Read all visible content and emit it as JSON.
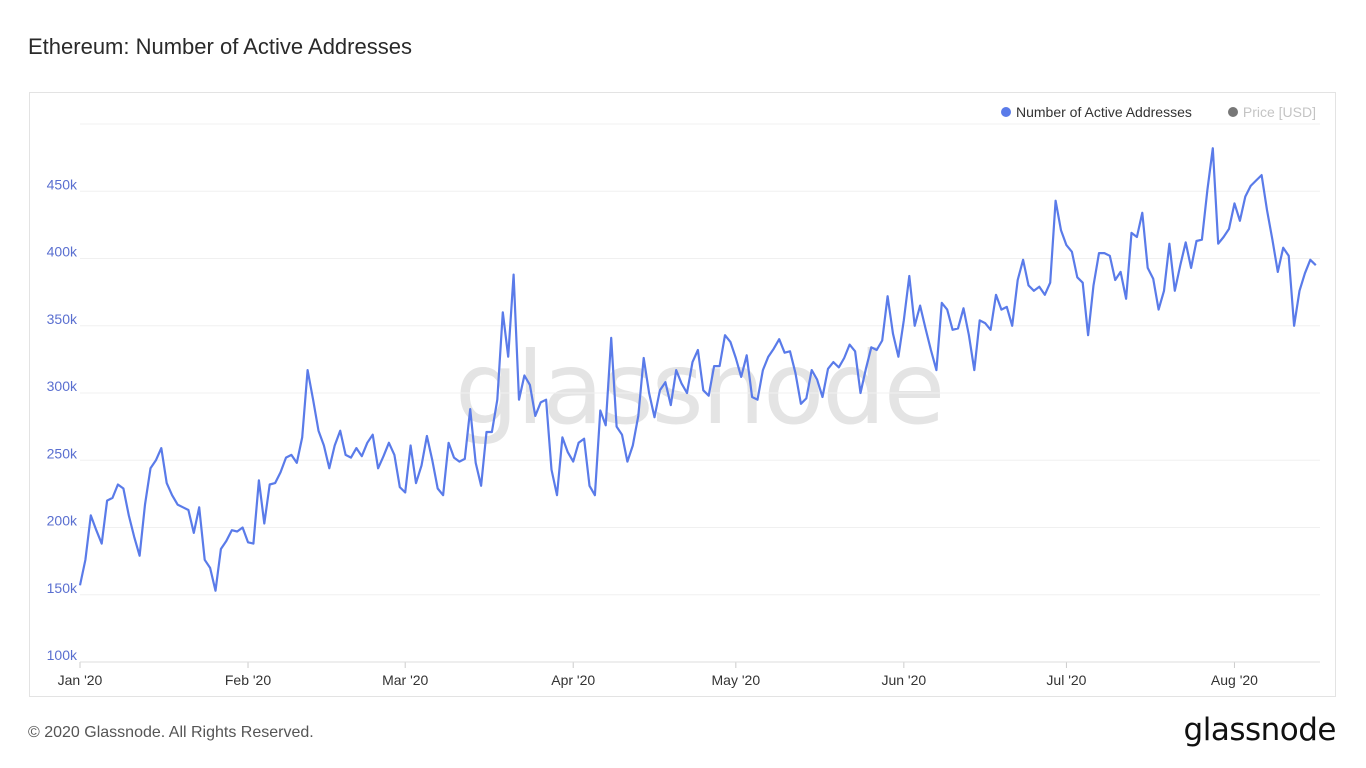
{
  "title": "Ethereum: Number of Active Addresses",
  "watermark": "glassnode",
  "footer": "© 2020 Glassnode. All Rights Reserved.",
  "logo": "glassnode",
  "colors": {
    "series": "#5a7be9",
    "price": "#777777",
    "grid": "#f0f0f0",
    "axis_label": "#5a6fd0"
  },
  "legend": [
    {
      "label": "Number of Active Addresses",
      "color": "#5a7be9",
      "active": true
    },
    {
      "label": "Price [USD]",
      "color": "#777777",
      "active": false
    }
  ],
  "chart_data": {
    "type": "line",
    "title": "Ethereum: Number of Active Addresses",
    "xlabel": "",
    "ylabel": "",
    "start_date": "2020-01-01",
    "x_unit": "day",
    "ylim": [
      100000,
      500000
    ],
    "yticks": [
      100000,
      150000,
      200000,
      250000,
      300000,
      350000,
      400000,
      450000
    ],
    "ytick_labels": [
      "100k",
      "150k",
      "200k",
      "250k",
      "300k",
      "350k",
      "400k",
      "450k"
    ],
    "xticks_days": [
      0,
      31,
      60,
      91,
      121,
      152,
      182,
      213
    ],
    "xtick_labels": [
      "Jan '20",
      "Feb '20",
      "Mar '20",
      "Apr '20",
      "May '20",
      "Jun '20",
      "Jul '20",
      "Aug '20"
    ],
    "grid": true,
    "legend_position": "top-right",
    "series": [
      {
        "name": "Number of Active Addresses",
        "values_k": [
          157,
          176,
          209,
          198,
          188,
          220,
          222,
          232,
          229,
          209,
          193,
          179,
          217,
          244,
          250,
          259,
          233,
          224,
          217,
          215,
          213,
          196,
          215,
          176,
          170,
          153,
          184,
          190,
          198,
          197,
          200,
          189,
          188,
          235,
          203,
          232,
          233,
          241,
          252,
          254,
          248,
          267,
          317,
          295,
          272,
          261,
          244,
          261,
          272,
          254,
          252,
          259,
          253,
          263,
          269,
          244,
          253,
          263,
          254,
          230,
          226,
          261,
          233,
          246,
          268,
          250,
          229,
          224,
          263,
          252,
          249,
          251,
          288,
          248,
          231,
          271,
          271,
          295,
          360,
          327,
          388,
          295,
          313,
          306,
          283,
          293,
          295,
          243,
          224,
          267,
          256,
          249,
          263,
          266,
          231,
          224,
          287,
          276,
          341,
          275,
          269,
          249,
          261,
          283,
          326,
          300,
          282,
          302,
          308,
          291,
          317,
          307,
          300,
          323,
          332,
          302,
          298,
          320,
          320,
          343,
          338,
          326,
          312,
          328,
          297,
          295,
          317,
          327,
          333,
          340,
          330,
          331,
          315,
          292,
          296,
          317,
          310,
          297,
          318,
          323,
          319,
          326,
          336,
          331,
          300,
          318,
          334,
          332,
          339,
          372,
          344,
          327,
          354,
          387,
          350,
          365,
          348,
          332,
          317,
          367,
          362,
          347,
          348,
          363,
          343,
          317,
          354,
          352,
          347,
          373,
          362,
          364,
          350,
          384,
          399,
          380,
          376,
          379,
          373,
          382,
          443,
          421,
          410,
          405,
          386,
          382,
          343,
          380,
          404,
          404,
          402,
          384,
          390,
          370,
          419,
          416,
          434,
          393,
          385,
          362,
          376,
          411,
          376,
          395,
          412,
          393,
          413,
          414,
          451,
          482,
          411,
          416,
          422,
          441,
          428,
          446,
          454,
          458,
          462,
          436,
          414,
          390,
          408,
          402,
          350,
          376,
          389,
          399,
          395
        ]
      },
      {
        "name": "Price [USD]",
        "hidden": true
      }
    ]
  }
}
